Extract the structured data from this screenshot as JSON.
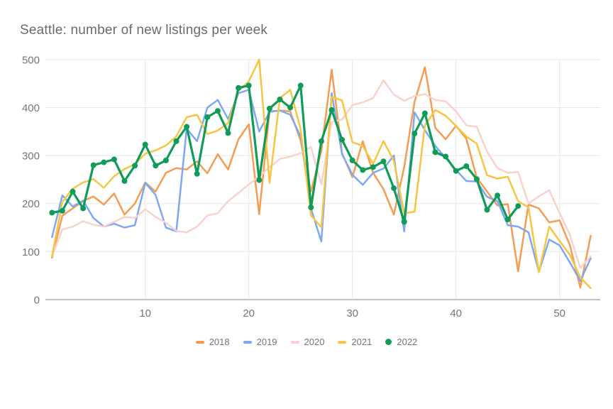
{
  "title": "Seattle: number of new listings per week",
  "colors": {
    "title_text": "#6b6b6b",
    "axis_label_text": "#757575",
    "gridline": "#e8e8e8",
    "baseline": "#a6a6a6",
    "background": "#ffffff"
  },
  "chart_data": {
    "type": "line",
    "title": "Seattle: number of new listings per week",
    "xlabel": "",
    "ylabel": "",
    "x_axis": {
      "min": 1,
      "max": 53,
      "ticks": [
        10,
        20,
        30,
        40,
        50
      ],
      "unit": "week number"
    },
    "y_axis": {
      "min": 0,
      "max": 500,
      "ticks": [
        0,
        100,
        200,
        300,
        400,
        500
      ]
    },
    "grid": true,
    "legend_position": "bottom",
    "series": [
      {
        "name": "2018",
        "color": "#f49d52",
        "marker": false,
        "values": [
          87,
          175,
          190,
          205,
          215,
          198,
          221,
          177,
          200,
          244,
          225,
          264,
          274,
          271,
          288,
          263,
          303,
          271,
          334,
          365,
          178,
          392,
          394,
          392,
          331,
          225,
          310,
          479,
          305,
          255,
          330,
          264,
          230,
          177,
          276,
          412,
          484,
          358,
          334,
          362,
          335,
          254,
          225,
          196,
          199,
          59,
          198,
          190,
          161,
          165,
          113,
          25,
          133
        ]
      },
      {
        "name": "2019",
        "color": "#7da8f3",
        "marker": false,
        "values": [
          130,
          217,
          194,
          206,
          170,
          152,
          158,
          150,
          155,
          243,
          218,
          150,
          142,
          356,
          330,
          400,
          416,
          376,
          430,
          437,
          350,
          391,
          394,
          385,
          340,
          190,
          121,
          430,
          303,
          260,
          239,
          264,
          273,
          300,
          142,
          390,
          353,
          320,
          295,
          270,
          247,
          246,
          214,
          205,
          155,
          152,
          140,
          58,
          125,
          113,
          77,
          39,
          86
        ]
      },
      {
        "name": "2020",
        "color": "#f9d2ce",
        "marker": false,
        "values": [
          90,
          146,
          152,
          163,
          156,
          152,
          162,
          172,
          170,
          188,
          172,
          160,
          143,
          140,
          152,
          175,
          180,
          205,
          222,
          240,
          256,
          276,
          293,
          298,
          305,
          318,
          240,
          370,
          375,
          405,
          411,
          420,
          457,
          427,
          414,
          424,
          428,
          416,
          413,
          392,
          363,
          360,
          308,
          274,
          264,
          266,
          200,
          215,
          228,
          180,
          135,
          66,
          90
        ]
      },
      {
        "name": "2021",
        "color": "#f5c543",
        "marker": false,
        "values": [
          90,
          204,
          231,
          244,
          251,
          233,
          257,
          272,
          282,
          304,
          311,
          321,
          340,
          380,
          385,
          345,
          352,
          368,
          435,
          455,
          500,
          243,
          420,
          437,
          355,
          175,
          151,
          422,
          415,
          328,
          320,
          283,
          330,
          289,
          180,
          183,
          363,
          395,
          383,
          362,
          340,
          325,
          259,
          252,
          256,
          205,
          192,
          57,
          152,
          122,
          93,
          46,
          24
        ]
      },
      {
        "name": "2022",
        "color": "#119b58",
        "marker": true,
        "values": [
          181,
          185,
          225,
          190,
          280,
          286,
          292,
          247,
          279,
          323,
          279,
          290,
          330,
          360,
          262,
          380,
          393,
          347,
          441,
          446,
          249,
          398,
          417,
          400,
          446,
          192,
          330,
          395,
          333,
          290,
          270,
          276,
          288,
          232,
          162,
          346,
          388,
          307,
          298,
          268,
          278,
          251,
          187,
          217,
          167,
          195
        ]
      }
    ]
  }
}
